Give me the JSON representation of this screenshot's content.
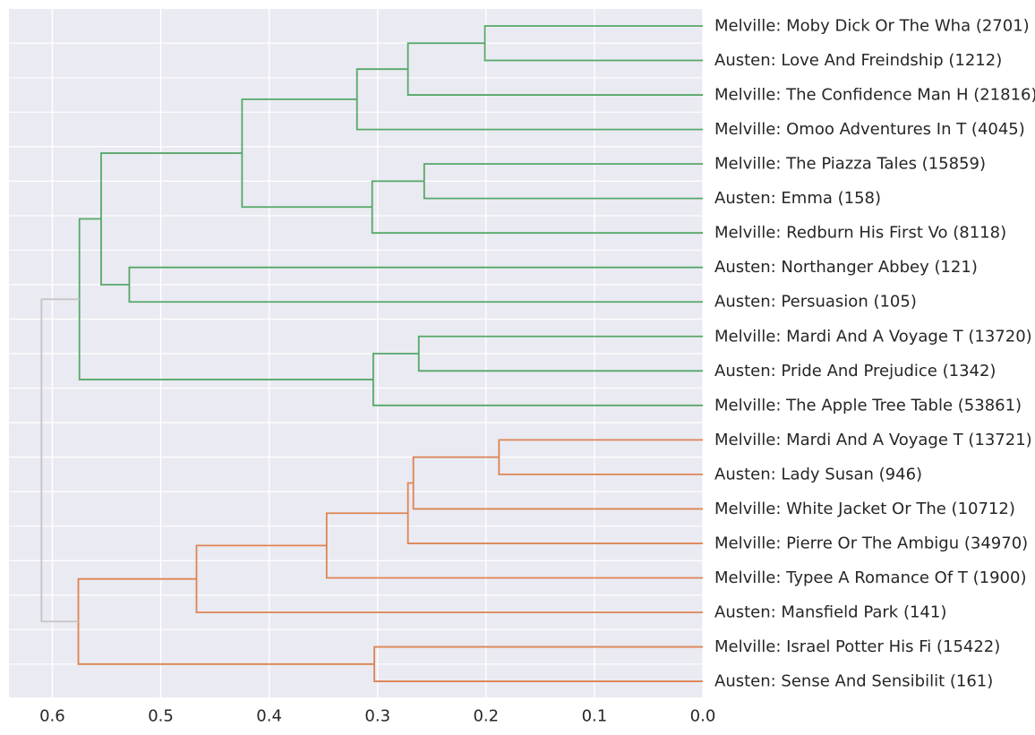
{
  "chart_data": {
    "type": "dendrogram",
    "orientation": "left",
    "xlim": [
      0.64,
      0.0
    ],
    "xticks": [
      "0.6",
      "0.5",
      "0.4",
      "0.3",
      "0.2",
      "0.1",
      "0.0"
    ],
    "grid": true,
    "colors": {
      "background": "#eaeaf2",
      "grid": "#ffffff",
      "cluster_green": "#55a868",
      "cluster_orange": "#dd8452",
      "root_link": "#c4c4c4"
    },
    "leaves": [
      "Melville: Moby Dick Or The Wha (2701)",
      "Austen: Love And Freindship  (1212)",
      "Melville: The Confidence Man H (21816)",
      "Melville: Omoo Adventures In T (4045)",
      "Melville: The Piazza Tales (15859)",
      "Austen: Emma (158)",
      "Melville: Redburn His First Vo (8118)",
      "Austen: Northanger Abbey (121)",
      "Austen: Persuasion (105)",
      "Melville: Mardi And A Voyage T (13720)",
      "Austen: Pride And Prejudice (1342)",
      "Melville: The Apple Tree Table (53861)",
      "Melville: Mardi And A Voyage T (13721)",
      "Austen: Lady Susan (946)",
      "Melville: White Jacket Or The  (10712)",
      "Melville: Pierre Or The Ambigu (34970)",
      "Melville: Typee A Romance Of T (1900)",
      "Austen: Mansfield Park (141)",
      "Melville: Israel Potter His Fi (15422)",
      "Austen: Sense And Sensibilit (161)"
    ],
    "merges": [
      {
        "a": "L0",
        "b": "L1",
        "height": 0.201,
        "color": "green"
      },
      {
        "a": "M0",
        "b": "L2",
        "height": 0.272,
        "color": "green"
      },
      {
        "a": "M1",
        "b": "L3",
        "height": 0.319,
        "color": "green"
      },
      {
        "a": "L4",
        "b": "L5",
        "height": 0.257,
        "color": "green"
      },
      {
        "a": "M3",
        "b": "L6",
        "height": 0.305,
        "color": "green"
      },
      {
        "a": "M2",
        "b": "M4",
        "height": 0.425,
        "color": "green"
      },
      {
        "a": "L7",
        "b": "L8",
        "height": 0.529,
        "color": "green"
      },
      {
        "a": "M5",
        "b": "M6",
        "height": 0.555,
        "color": "green"
      },
      {
        "a": "L9",
        "b": "L10",
        "height": 0.262,
        "color": "green"
      },
      {
        "a": "M8",
        "b": "L11",
        "height": 0.304,
        "color": "green"
      },
      {
        "a": "M7",
        "b": "M9",
        "height": 0.575,
        "color": "green"
      },
      {
        "a": "L12",
        "b": "L13",
        "height": 0.188,
        "color": "orange"
      },
      {
        "a": "M11",
        "b": "L14",
        "height": 0.267,
        "color": "orange"
      },
      {
        "a": "M12",
        "b": "L15",
        "height": 0.272,
        "color": "orange"
      },
      {
        "a": "M13",
        "b": "L16",
        "height": 0.347,
        "color": "orange"
      },
      {
        "a": "M14",
        "b": "L17",
        "height": 0.467,
        "color": "orange"
      },
      {
        "a": "L18",
        "b": "L19",
        "height": 0.303,
        "color": "orange"
      },
      {
        "a": "M15",
        "b": "M16",
        "height": 0.576,
        "color": "orange"
      },
      {
        "a": "M10",
        "b": "M17",
        "height": 0.61,
        "color": "root"
      }
    ]
  }
}
